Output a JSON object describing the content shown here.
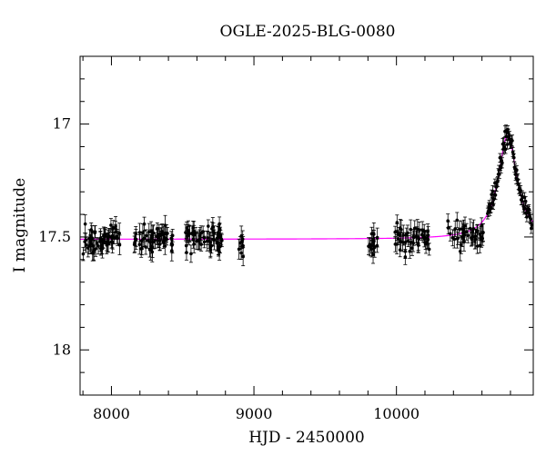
{
  "chart_data": {
    "type": "scatter",
    "title": "OGLE-2025-BLG-0080",
    "xlabel": "HJD - 2450000",
    "ylabel": "I magnitude",
    "xlim": [
      7780,
      10960
    ],
    "ylim": [
      18.2,
      16.7
    ],
    "y_inverted": true,
    "xticks": [
      8000,
      9000,
      10000
    ],
    "yticks": [
      17,
      17.5,
      18
    ],
    "ytick_labels": [
      "17",
      "17.5",
      "18"
    ],
    "colors": {
      "data": "#000000",
      "model": "#ff00ff",
      "axes": "#000000"
    },
    "series": [
      {
        "kind": "points-with-errorbars",
        "segments": [
          {
            "x_start": 7790,
            "x_end": 8060,
            "y_mean": 17.51,
            "y_scatter": 0.03,
            "yerr": 0.035,
            "count": 60
          },
          {
            "x_start": 8160,
            "x_end": 8430,
            "y_mean": 17.51,
            "y_scatter": 0.03,
            "yerr": 0.035,
            "count": 60
          },
          {
            "x_start": 8520,
            "x_end": 8780,
            "y_mean": 17.51,
            "y_scatter": 0.03,
            "yerr": 0.035,
            "count": 60
          },
          {
            "x_start": 8890,
            "x_end": 8925,
            "y_mean": 17.53,
            "y_scatter": 0.03,
            "yerr": 0.035,
            "count": 8
          },
          {
            "x_start": 9800,
            "x_end": 9870,
            "y_mean": 17.52,
            "y_scatter": 0.04,
            "yerr": 0.04,
            "count": 14
          },
          {
            "x_start": 9990,
            "x_end": 10240,
            "y_mean": 17.51,
            "y_scatter": 0.03,
            "yerr": 0.035,
            "count": 50
          },
          {
            "x_start": 10360,
            "x_end": 10610,
            "y_mean": 17.49,
            "y_scatter": 0.03,
            "yerr": 0.035,
            "count": 45
          }
        ],
        "event_points": {
          "x_start": 10640,
          "x_end": 10950,
          "count": 80,
          "scatter": 0.02,
          "yerr": 0.02
        }
      },
      {
        "kind": "model",
        "baseline_mag": 17.51,
        "peak_time": 10780,
        "peak_mag": 17.05,
        "rise_timescale_days": 80
      }
    ]
  }
}
